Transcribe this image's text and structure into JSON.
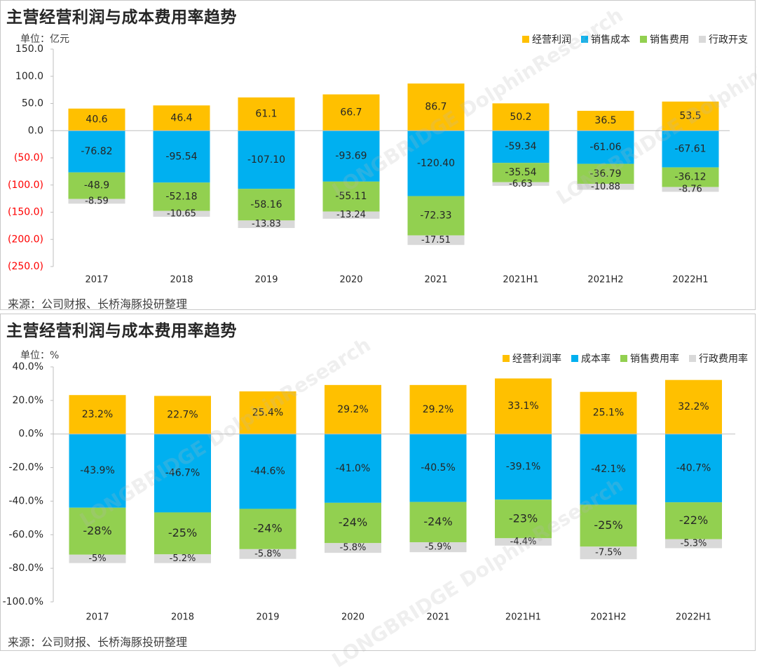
{
  "colors": {
    "profit": "#FFC000",
    "cost": "#00B0F0",
    "sales": "#92D050",
    "admin": "#D9D9D9",
    "axis_neg_label": "#FF0000"
  },
  "watermark": "LONGBRIDGE DolphinResearch",
  "chart_data": [
    {
      "type": "bar",
      "stacked": true,
      "title": "主营经营利润与成本费用率趋势",
      "unit_label": "单位：亿元",
      "source": "来源：公司财报、长桥海豚投研整理",
      "categories": [
        "2017",
        "2018",
        "2019",
        "2020",
        "2021",
        "2021H1",
        "2021H2",
        "2022H1"
      ],
      "ylim": [
        -250,
        150
      ],
      "yticks": [
        150,
        100,
        50,
        0,
        -50,
        -100,
        -150,
        -200,
        -250
      ],
      "ytick_labels": [
        "150.0",
        "100.0",
        "50.0",
        "0.0",
        "(50.0)",
        "(100.0)",
        "(150.0)",
        "(200.0)",
        "(250.0)"
      ],
      "series": [
        {
          "name": "经营利润",
          "key": "profit",
          "values": [
            40.6,
            46.4,
            61.1,
            66.7,
            86.7,
            50.2,
            36.5,
            53.5
          ],
          "labels": [
            "40.6",
            "46.4",
            "61.1",
            "66.7",
            "86.7",
            "50.2",
            "36.5",
            "53.5"
          ]
        },
        {
          "name": "销售成本",
          "key": "cost",
          "values": [
            -76.82,
            -95.54,
            -107.1,
            -93.69,
            -120.4,
            -59.34,
            -61.06,
            -67.61
          ],
          "labels": [
            "-76.82",
            "-95.54",
            "-107.10",
            "-93.69",
            "-120.40",
            "-59.34",
            "-61.06",
            "-67.61"
          ]
        },
        {
          "name": "销售费用",
          "key": "sales",
          "values": [
            -48.9,
            -52.18,
            -58.16,
            -55.11,
            -72.33,
            -35.54,
            -36.79,
            -36.12
          ],
          "labels": [
            "-48.9",
            "-52.18",
            "-58.16",
            "-55.11",
            "-72.33",
            "-35.54",
            "-36.79",
            "-36.12"
          ]
        },
        {
          "name": "行政开支",
          "key": "admin",
          "values": [
            -8.59,
            -10.65,
            -13.83,
            -13.24,
            -17.51,
            -6.63,
            -10.88,
            -8.76
          ],
          "labels": [
            "-8.59",
            "-10.65",
            "-13.83",
            "-13.24",
            "-17.51",
            "-6.63",
            "-10.88",
            "-8.76"
          ]
        }
      ]
    },
    {
      "type": "bar",
      "stacked": true,
      "title": "主营经营利润与成本费用率趋势",
      "unit_label": "单位：%",
      "source": "来源：公司财报、长桥海豚投研整理",
      "categories": [
        "2017",
        "2018",
        "2019",
        "2020",
        "2021",
        "2021H1",
        "2021H2",
        "2022H1"
      ],
      "ylim": [
        -100,
        40
      ],
      "yticks": [
        40,
        20,
        0,
        -20,
        -40,
        -60,
        -80,
        -100
      ],
      "ytick_labels": [
        "40.0%",
        "20.0%",
        "0.0%",
        "-20.0%",
        "-40.0%",
        "-60.0%",
        "-80.0%",
        "-100.0%"
      ],
      "series": [
        {
          "name": "经营利润率",
          "key": "profit",
          "values": [
            23.2,
            22.7,
            25.4,
            29.2,
            29.2,
            33.1,
            25.1,
            32.2
          ],
          "labels": [
            "23.2%",
            "22.7%",
            "25.4%",
            "29.2%",
            "29.2%",
            "33.1%",
            "25.1%",
            "32.2%"
          ]
        },
        {
          "name": "成本率",
          "key": "cost",
          "values": [
            -43.9,
            -46.7,
            -44.6,
            -41.0,
            -40.5,
            -39.1,
            -42.1,
            -40.7
          ],
          "labels": [
            "-43.9%",
            "-46.7%",
            "-44.6%",
            "-41.0%",
            "-40.5%",
            "-39.1%",
            "-42.1%",
            "-40.7%"
          ]
        },
        {
          "name": "销售费用率",
          "key": "sales",
          "values": [
            -28,
            -25,
            -24,
            -24,
            -24,
            -23,
            -25,
            -22
          ],
          "labels": [
            "-28%",
            "-25%",
            "-24%",
            "-24%",
            "-24%",
            "-23%",
            "-25%",
            "-22%"
          ]
        },
        {
          "name": "行政费用率",
          "key": "admin",
          "values": [
            -5,
            -5.2,
            -5.8,
            -5.8,
            -5.9,
            -4.4,
            -7.5,
            -5.3
          ],
          "labels": [
            "-5%",
            "-5.2%",
            "-5.8%",
            "-5.8%",
            "-5.9%",
            "-4.4%",
            "-7.5%",
            "-5.3%"
          ]
        }
      ]
    }
  ]
}
